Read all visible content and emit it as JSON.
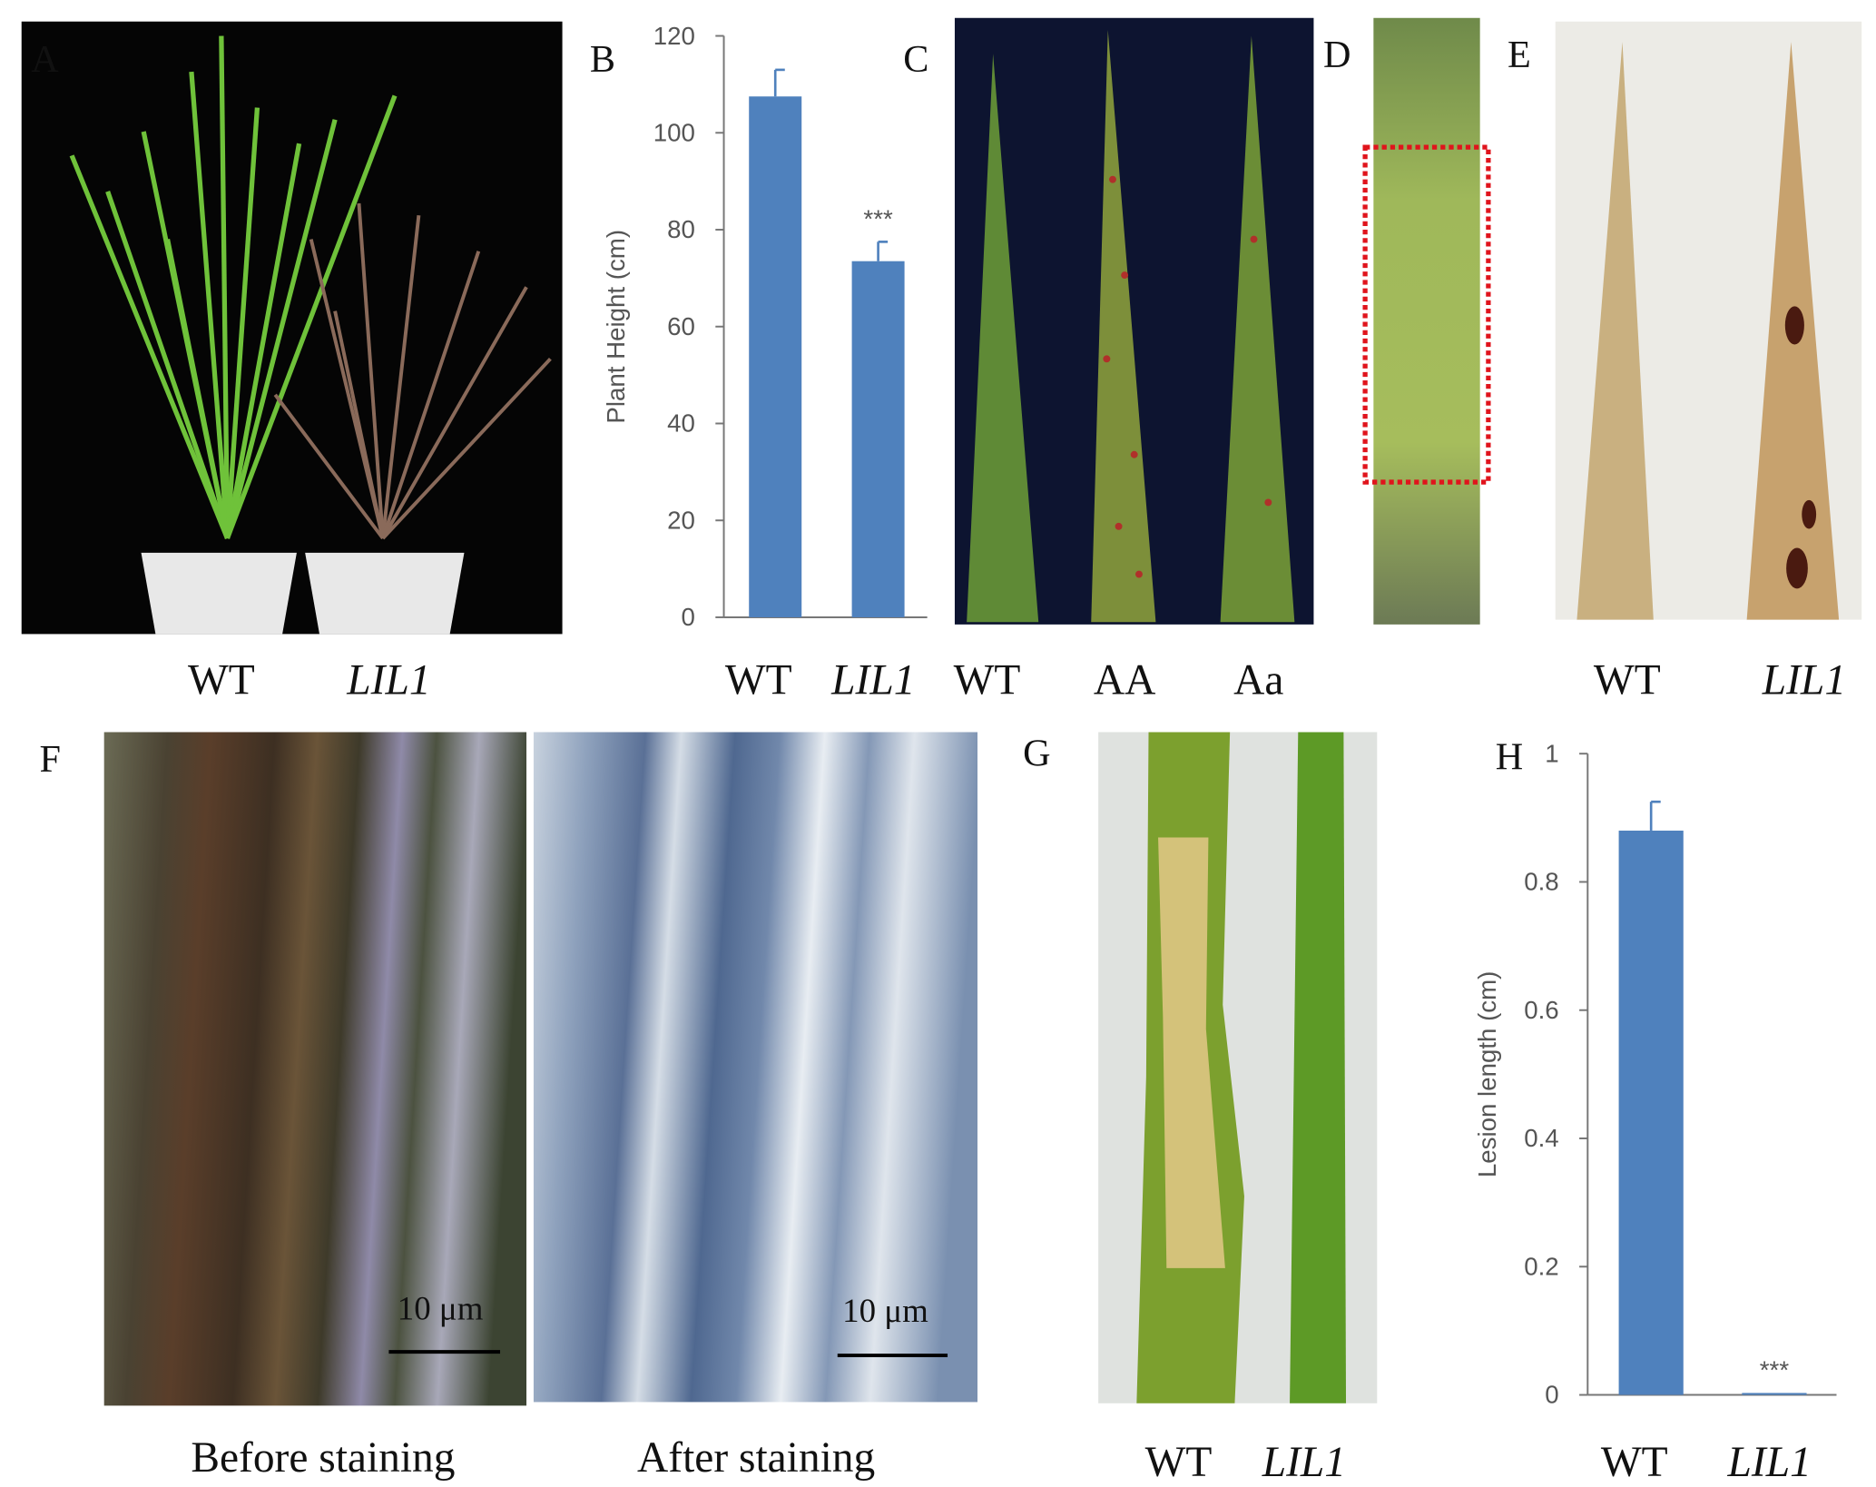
{
  "panel_labels": [
    "A",
    "B",
    "C",
    "D",
    "E",
    "F",
    "G",
    "H"
  ],
  "panel_a": {
    "labels": [
      "WT",
      "LIL1"
    ]
  },
  "panel_c": {
    "labels": [
      "WT",
      "AA",
      "Aa"
    ]
  },
  "panel_e": {
    "labels": [
      "WT",
      "LIL1"
    ]
  },
  "panel_f": {
    "labels": [
      "Before staining",
      "After staining"
    ],
    "scale_bars": [
      "10 μm",
      "10 μm"
    ]
  },
  "panel_g": {
    "labels": [
      "WT",
      "LIL1"
    ]
  },
  "chart_data": [
    {
      "type": "bar",
      "ylabel": "Plant Height (cm)",
      "categories": [
        "WT",
        "LIL1"
      ],
      "values": [
        107.5,
        73.5
      ],
      "errors": [
        5.5,
        4
      ],
      "annotation": "***",
      "color": "#4f81bd",
      "ylim": [
        0,
        120
      ],
      "yticks": [
        0,
        20,
        40,
        60,
        80,
        100,
        120
      ]
    },
    {
      "type": "bar",
      "ylabel": "Lesion length (cm)",
      "categories": [
        "WT",
        "LIL1"
      ],
      "values": [
        0.88,
        0.003
      ],
      "errors": [
        0.045,
        0
      ],
      "annotation": "***",
      "color": "#4f81bd",
      "ylim": [
        0,
        1
      ],
      "yticks": [
        0,
        0.2,
        0.4,
        0.6,
        0.8,
        1
      ]
    }
  ]
}
